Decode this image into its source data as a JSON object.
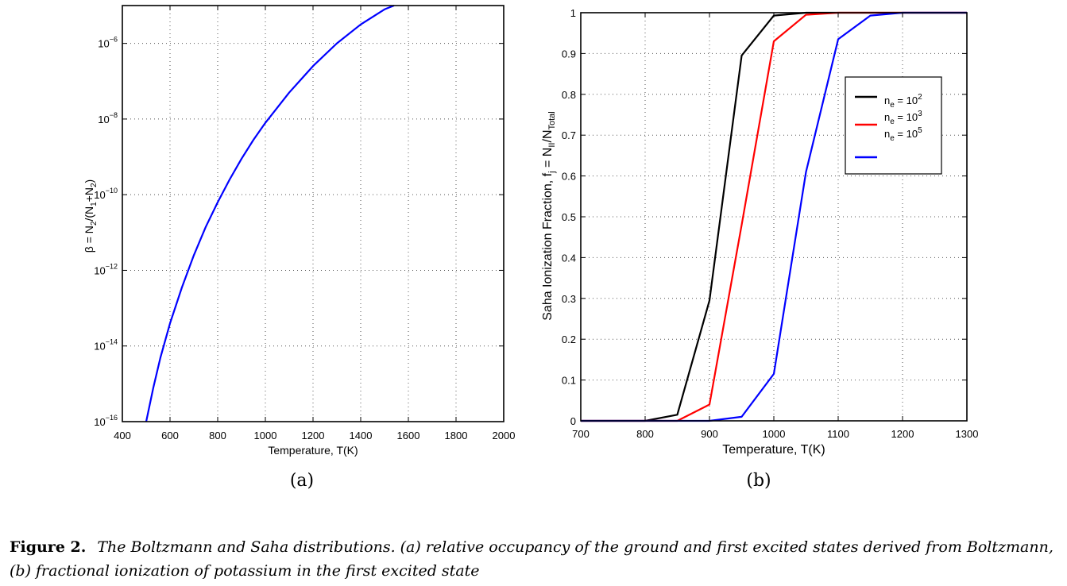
{
  "figure": {
    "caption_label": "Figure 2.",
    "caption_text": "The Boltzmann and Saha distributions. (a) relative occupancy of the ground and first excited states derived from Boltzmann, (b) fractional ionization of potassium in the first excited state"
  },
  "chart_data": [
    {
      "id": "a",
      "sublabel": "(a)",
      "type": "line",
      "title": "",
      "xlabel": "Temperature, T(K)",
      "ylabel": "β = N2/(N1+N2)",
      "xscale": "linear",
      "yscale": "log",
      "xlim": [
        400,
        2000
      ],
      "ylim_log10": [
        -16,
        -5
      ],
      "xticks": [
        400,
        600,
        800,
        1000,
        1200,
        1400,
        1600,
        1800,
        2000
      ],
      "yticks_log10": [
        -16,
        -14,
        -12,
        -10,
        -8,
        -6
      ],
      "grid": true,
      "series": [
        {
          "color": "#0000ff",
          "x": [
            500,
            530,
            560,
            600,
            650,
            700,
            750,
            800,
            850,
            900,
            950,
            1000,
            1100,
            1200,
            1300,
            1400,
            1500,
            1540
          ],
          "y_log10": [
            -16.0,
            -15.1,
            -14.3,
            -13.4,
            -12.45,
            -11.6,
            -10.85,
            -10.2,
            -9.6,
            -9.05,
            -8.55,
            -8.1,
            -7.3,
            -6.6,
            -6.0,
            -5.5,
            -5.1,
            -5.0
          ]
        }
      ]
    },
    {
      "id": "b",
      "sublabel": "(b)",
      "type": "line",
      "title": "",
      "xlabel": "Temperature, T(K)",
      "ylabel": "Saha Ionization Fraction, fj = NII/NTotal",
      "xlim": [
        700,
        1300
      ],
      "ylim": [
        0,
        1
      ],
      "xticks": [
        700,
        800,
        900,
        1000,
        1100,
        1200,
        1300
      ],
      "yticks": [
        0,
        0.1,
        0.2,
        0.3,
        0.4,
        0.5,
        0.6,
        0.7,
        0.8,
        0.9,
        1
      ],
      "ytick_labels": [
        "0",
        "0.1",
        "0.2",
        "0.3",
        "0.4",
        "0.5",
        "0.6",
        "0.7",
        "0.8",
        "0.9",
        "1"
      ],
      "grid": true,
      "legend_position": "upper-right",
      "x": [
        700,
        750,
        800,
        850,
        900,
        950,
        1000,
        1050,
        1100,
        1150,
        1200,
        1250,
        1300
      ],
      "series": [
        {
          "name": "ne = 10^2",
          "color": "#000000",
          "values": [
            0,
            0,
            0,
            0.015,
            0.295,
            0.895,
            0.993,
            1.0,
            1.0,
            1.0,
            1.0,
            1.0,
            1.0
          ]
        },
        {
          "name": "ne = 10^3",
          "color": "#ff0000",
          "values": [
            0,
            0,
            0,
            0,
            0.04,
            0.48,
            0.93,
            0.995,
            1.0,
            1.0,
            1.0,
            1.0,
            1.0
          ]
        },
        {
          "name": "ne = 10^5",
          "color": "#0000ff",
          "values": [
            0,
            0,
            0,
            0,
            0,
            0.01,
            0.115,
            0.61,
            0.935,
            0.993,
            1.0,
            1.0,
            1.0
          ]
        }
      ]
    }
  ]
}
